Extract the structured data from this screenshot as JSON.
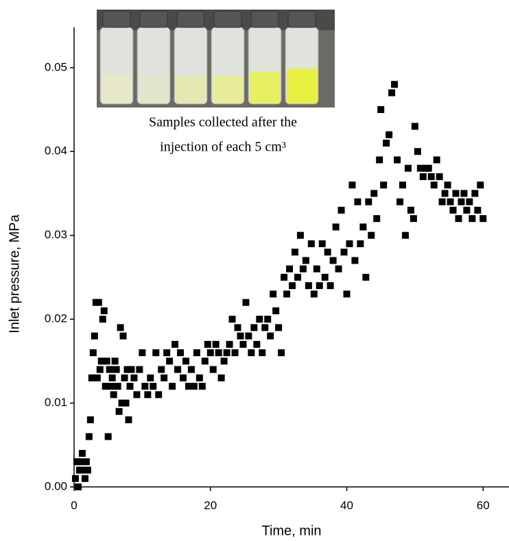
{
  "chart_data": {
    "type": "scatter",
    "x_label": "Time, min",
    "y_label": "Inlet pressure, MPa",
    "annotation_lines": [
      "Samples collected after the",
      "injection of each 5 cm³"
    ],
    "xlim": [
      0,
      63.8
    ],
    "ylim": [
      0,
      0.0548
    ],
    "xticks": [
      0,
      20,
      40,
      60
    ],
    "yticks": [
      {
        "value": 0,
        "label": "0.00"
      },
      0.01,
      0.02,
      0.03,
      0.04,
      0.05
    ],
    "series": [
      {
        "color": "#000000",
        "x": [
          0.2,
          0.4,
          0.6,
          0.8,
          1,
          1.2,
          1.4,
          1.6,
          1.8,
          2,
          2.2,
          2.4,
          2.6,
          2.8,
          3,
          3.2,
          3.4,
          3.6,
          3.8,
          4,
          4.2,
          4.4,
          4.6,
          4.8,
          5,
          5.2,
          5.4,
          5.6,
          5.8,
          6,
          6.2,
          6.4,
          6.6,
          6.8,
          7,
          7.2,
          7.4,
          7.6,
          7.8,
          8,
          8.2,
          8.4,
          8.8,
          9.2,
          9.6,
          10,
          10.4,
          10.8,
          11.2,
          11.6,
          12,
          12.4,
          12.8,
          13.2,
          13.6,
          14,
          14.4,
          14.8,
          15.2,
          15.6,
          16,
          16.4,
          16.8,
          17.2,
          17.6,
          18,
          18.4,
          18.8,
          19.2,
          19.6,
          20,
          20.4,
          20.8,
          21.2,
          21.6,
          22,
          22.4,
          22.8,
          23.2,
          23.6,
          24,
          24.4,
          24.8,
          25.2,
          25.6,
          26,
          26.4,
          26.8,
          27.2,
          27.6,
          28,
          28.4,
          28.8,
          29.2,
          29.6,
          30,
          30.4,
          30.8,
          31.2,
          31.6,
          32,
          32.4,
          32.8,
          33.2,
          33.6,
          34,
          34.4,
          34.8,
          35.2,
          35.6,
          36,
          36.4,
          36.8,
          37.2,
          37.6,
          38,
          38.4,
          38.8,
          39.2,
          39.6,
          40,
          40.4,
          40.8,
          41.2,
          41.6,
          42,
          42.4,
          42.8,
          43.2,
          43.6,
          44,
          44.4,
          44.8,
          45,
          45.4,
          45.8,
          46.2,
          46.6,
          47,
          47.4,
          47.8,
          48.2,
          48.6,
          49,
          49.4,
          49.8,
          50,
          50.4,
          50.8,
          51.2,
          51.6,
          52,
          52.4,
          52.8,
          53.2,
          53.6,
          54,
          54.4,
          54.8,
          55.2,
          55.6,
          56,
          56.4,
          56.8,
          57.2,
          57.6,
          58,
          58.4,
          58.8,
          59.2,
          59.6,
          60
        ],
        "values": [
          0.001,
          0.003,
          0,
          0.002,
          0.003,
          0.004,
          0.002,
          0.001,
          0.003,
          0.002,
          0.006,
          0.008,
          0.013,
          0.016,
          0.018,
          0.022,
          0.013,
          0.022,
          0.014,
          0.015,
          0.02,
          0.021,
          0.012,
          0.015,
          0.006,
          0.014,
          0.012,
          0.013,
          0.011,
          0.015,
          0.014,
          0.012,
          0.009,
          0.019,
          0.01,
          0.018,
          0.013,
          0.01,
          0.014,
          0.008,
          0.012,
          0.014,
          0.013,
          0.011,
          0.014,
          0.016,
          0.012,
          0.011,
          0.013,
          0.012,
          0.016,
          0.011,
          0.014,
          0.013,
          0.016,
          0.015,
          0.012,
          0.017,
          0.014,
          0.016,
          0.013,
          0.015,
          0.012,
          0.014,
          0.012,
          0.016,
          0.013,
          0.012,
          0.015,
          0.017,
          0.016,
          0.014,
          0.017,
          0.016,
          0.013,
          0.015,
          0.016,
          0.017,
          0.02,
          0.016,
          0.019,
          0.018,
          0.017,
          0.022,
          0.018,
          0.016,
          0.019,
          0.017,
          0.02,
          0.016,
          0.019,
          0.02,
          0.018,
          0.023,
          0.021,
          0.019,
          0.016,
          0.025,
          0.023,
          0.026,
          0.024,
          0.028,
          0.025,
          0.03,
          0.026,
          0.027,
          0.024,
          0.029,
          0.023,
          0.026,
          0.024,
          0.029,
          0.025,
          0.028,
          0.024,
          0.027,
          0.031,
          0.026,
          0.033,
          0.028,
          0.023,
          0.029,
          0.036,
          0.027,
          0.034,
          0.029,
          0.031,
          0.025,
          0.034,
          0.03,
          0.035,
          0.032,
          0.039,
          0.045,
          0.036,
          0.041,
          0.042,
          0.047,
          0.048,
          0.039,
          0.034,
          0.036,
          0.03,
          0.038,
          0.033,
          0.032,
          0.043,
          0.04,
          0.038,
          0.037,
          0.038,
          0.038,
          0.037,
          0.036,
          0.039,
          0.037,
          0.034,
          0.035,
          0.036,
          0.034,
          0.033,
          0.035,
          0.032,
          0.034,
          0.035,
          0.033,
          0.034,
          0.032,
          0.035,
          0.033,
          0.036,
          0.032
        ]
      }
    ]
  }
}
